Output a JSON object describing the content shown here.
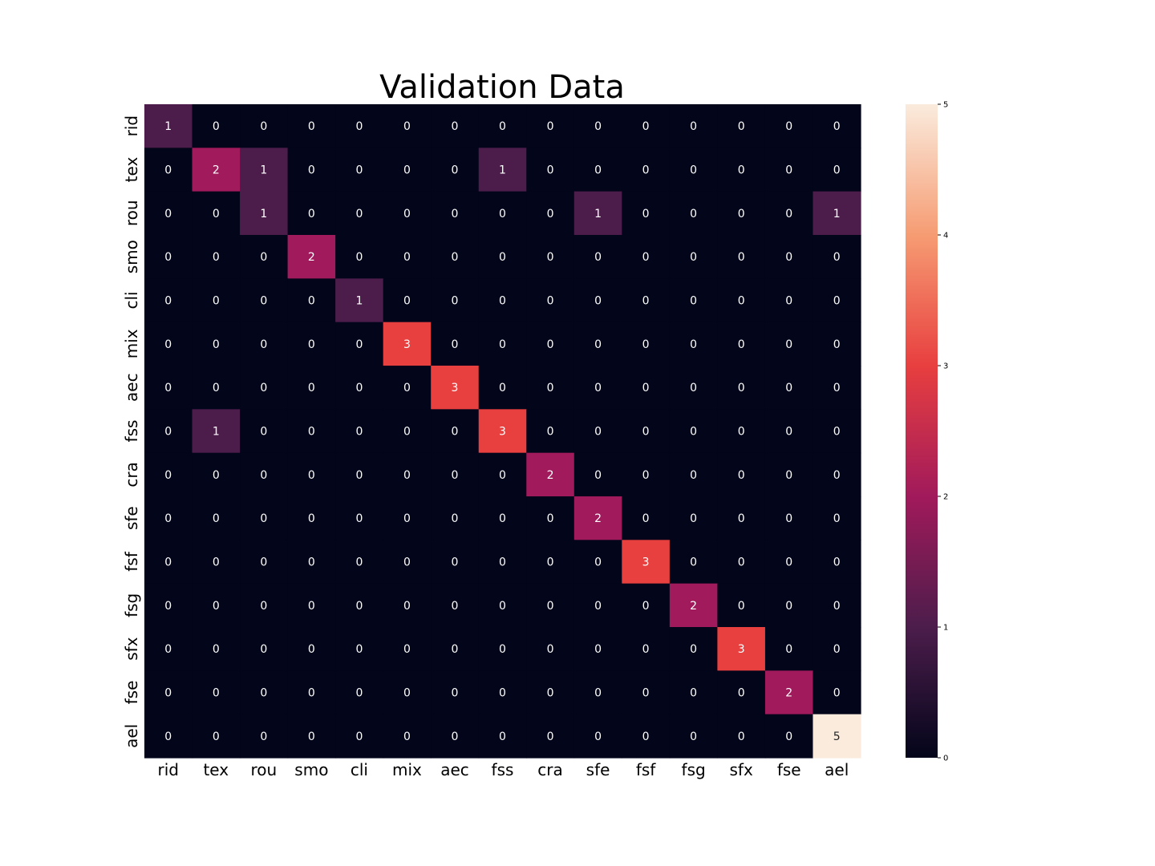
{
  "chart_data": {
    "type": "heatmap",
    "title": "Validation Data",
    "row_labels": [
      "rid",
      "tex",
      "rou",
      "smo",
      "cli",
      "mix",
      "aec",
      "fss",
      "cra",
      "sfe",
      "fsf",
      "fsg",
      "sfx",
      "fse",
      "ael"
    ],
    "col_labels": [
      "rid",
      "tex",
      "rou",
      "smo",
      "cli",
      "mix",
      "aec",
      "fss",
      "cra",
      "sfe",
      "fsf",
      "fsg",
      "sfx",
      "fse",
      "ael"
    ],
    "matrix": [
      [
        1,
        0,
        0,
        0,
        0,
        0,
        0,
        0,
        0,
        0,
        0,
        0,
        0,
        0,
        0
      ],
      [
        0,
        2,
        1,
        0,
        0,
        0,
        0,
        1,
        0,
        0,
        0,
        0,
        0,
        0,
        0
      ],
      [
        0,
        0,
        1,
        0,
        0,
        0,
        0,
        0,
        0,
        1,
        0,
        0,
        0,
        0,
        1
      ],
      [
        0,
        0,
        0,
        2,
        0,
        0,
        0,
        0,
        0,
        0,
        0,
        0,
        0,
        0,
        0
      ],
      [
        0,
        0,
        0,
        0,
        1,
        0,
        0,
        0,
        0,
        0,
        0,
        0,
        0,
        0,
        0
      ],
      [
        0,
        0,
        0,
        0,
        0,
        3,
        0,
        0,
        0,
        0,
        0,
        0,
        0,
        0,
        0
      ],
      [
        0,
        0,
        0,
        0,
        0,
        0,
        3,
        0,
        0,
        0,
        0,
        0,
        0,
        0,
        0
      ],
      [
        0,
        1,
        0,
        0,
        0,
        0,
        0,
        3,
        0,
        0,
        0,
        0,
        0,
        0,
        0
      ],
      [
        0,
        0,
        0,
        0,
        0,
        0,
        0,
        0,
        2,
        0,
        0,
        0,
        0,
        0,
        0
      ],
      [
        0,
        0,
        0,
        0,
        0,
        0,
        0,
        0,
        0,
        2,
        0,
        0,
        0,
        0,
        0
      ],
      [
        0,
        0,
        0,
        0,
        0,
        0,
        0,
        0,
        0,
        0,
        3,
        0,
        0,
        0,
        0
      ],
      [
        0,
        0,
        0,
        0,
        0,
        0,
        0,
        0,
        0,
        0,
        0,
        2,
        0,
        0,
        0
      ],
      [
        0,
        0,
        0,
        0,
        0,
        0,
        0,
        0,
        0,
        0,
        0,
        0,
        3,
        0,
        0
      ],
      [
        0,
        0,
        0,
        0,
        0,
        0,
        0,
        0,
        0,
        0,
        0,
        0,
        0,
        2,
        0
      ],
      [
        0,
        0,
        0,
        0,
        0,
        0,
        0,
        0,
        0,
        0,
        0,
        0,
        0,
        0,
        5
      ]
    ],
    "vmin": 0,
    "vmax": 5,
    "colorbar_ticks": [
      0,
      1,
      2,
      3,
      4,
      5
    ],
    "colorscale": [
      "#03051a",
      "#4c1d4b",
      "#a11a5b",
      "#e83f3f",
      "#f69c73",
      "#faebdd"
    ],
    "annot_color_dark": "#ffffff",
    "annot_color_light": "#262626"
  }
}
